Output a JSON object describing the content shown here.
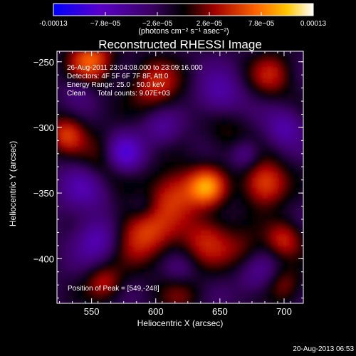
{
  "chart_data": {
    "type": "heatmap",
    "title": "Reconstructed RHESSI Image",
    "xlabel": "Heliocentric X (arcsec)",
    "ylabel": "Heliocentric Y (arcsec)",
    "xlim": [
      523,
      715
    ],
    "ylim": [
      -434,
      -242
    ],
    "x_ticks": [
      550,
      600,
      650,
      700
    ],
    "y_ticks": [
      -250,
      -300,
      -350,
      -400
    ],
    "colorbar": {
      "min_label": "-0.00013",
      "max_label": "0.00013",
      "tick_labels": [
        "-0.00013",
        "−7.8e−05",
        "−2.6e−05",
        "2.6e−05",
        "7.8e−05",
        "0.00013"
      ],
      "unit_label": "(photons cm⁻² s⁻¹ asec⁻²)",
      "vmin": -0.00013,
      "vmax": 0.00013
    },
    "annotations": [
      "26-Aug-2011 23:04:08.000 to 23:09:16.000",
      "Detectors: 4F 5F 6F 7F 8F, Att 0",
      "Energy Range: 25.0 - 50.0 keV",
      "Clean      Total counts: 9.07E+03"
    ],
    "peak_label": "Position of Peak = [549,-248]",
    "peak_position": [
      549,
      -248
    ],
    "colors": {
      "background": "#000000",
      "colormap": [
        "#1010ff",
        "#5a00b4",
        "#500060",
        "#000000",
        "#b40000",
        "#ff6400",
        "#ffc800",
        "#ffffff"
      ]
    }
  },
  "timestamp": "20-Aug-2013 06:53"
}
